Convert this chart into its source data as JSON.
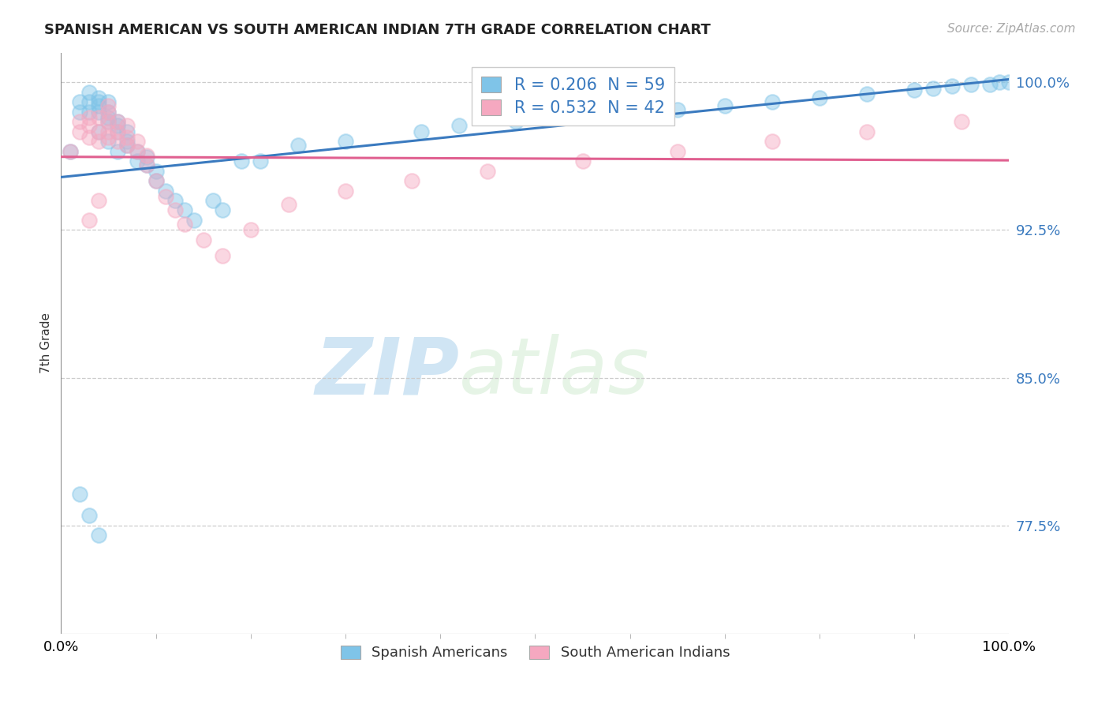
{
  "title": "SPANISH AMERICAN VS SOUTH AMERICAN INDIAN 7TH GRADE CORRELATION CHART",
  "source": "Source: ZipAtlas.com",
  "ylabel": "7th Grade",
  "xlim": [
    0.0,
    1.0
  ],
  "ylim": [
    0.72,
    1.015
  ],
  "ytick_labels": [
    "77.5%",
    "85.0%",
    "92.5%",
    "100.0%"
  ],
  "ytick_values": [
    0.775,
    0.85,
    0.925,
    1.0
  ],
  "legend_r1": "R = 0.206",
  "legend_n1": "N = 59",
  "legend_r2": "R = 0.532",
  "legend_n2": "N = 42",
  "blue_color": "#7fc4e8",
  "pink_color": "#f5a8c0",
  "blue_line_color": "#3a7abf",
  "pink_line_color": "#e06090",
  "watermark_zip": "ZIP",
  "watermark_atlas": "atlas",
  "blue_scatter_x": [
    0.01,
    0.02,
    0.02,
    0.03,
    0.03,
    0.03,
    0.04,
    0.04,
    0.04,
    0.04,
    0.04,
    0.05,
    0.05,
    0.05,
    0.05,
    0.05,
    0.06,
    0.06,
    0.06,
    0.06,
    0.07,
    0.07,
    0.07,
    0.08,
    0.08,
    0.09,
    0.09,
    0.1,
    0.1,
    0.11,
    0.12,
    0.13,
    0.14,
    0.16,
    0.17,
    0.19,
    0.21,
    0.25,
    0.3,
    0.38,
    0.42,
    0.48,
    0.55,
    0.6,
    0.65,
    0.7,
    0.75,
    0.8,
    0.85,
    0.9,
    0.92,
    0.94,
    0.96,
    0.98,
    0.99,
    0.02,
    0.03,
    0.04,
    1.0
  ],
  "blue_scatter_y": [
    0.965,
    0.985,
    0.99,
    0.985,
    0.99,
    0.995,
    0.985,
    0.988,
    0.99,
    0.992,
    0.975,
    0.98,
    0.982,
    0.985,
    0.99,
    0.97,
    0.975,
    0.978,
    0.98,
    0.965,
    0.968,
    0.97,
    0.975,
    0.96,
    0.965,
    0.958,
    0.962,
    0.95,
    0.955,
    0.945,
    0.94,
    0.935,
    0.93,
    0.94,
    0.935,
    0.96,
    0.96,
    0.968,
    0.97,
    0.975,
    0.978,
    0.98,
    0.982,
    0.984,
    0.986,
    0.988,
    0.99,
    0.992,
    0.994,
    0.996,
    0.997,
    0.998,
    0.999,
    0.999,
    1.0,
    0.791,
    0.78,
    0.77,
    1.0
  ],
  "pink_scatter_x": [
    0.01,
    0.02,
    0.02,
    0.03,
    0.03,
    0.03,
    0.04,
    0.04,
    0.04,
    0.05,
    0.05,
    0.05,
    0.05,
    0.06,
    0.06,
    0.06,
    0.07,
    0.07,
    0.07,
    0.08,
    0.08,
    0.09,
    0.09,
    0.1,
    0.11,
    0.12,
    0.13,
    0.15,
    0.17,
    0.2,
    0.24,
    0.3,
    0.37,
    0.45,
    0.55,
    0.65,
    0.75,
    0.85,
    0.95,
    0.03,
    0.04,
    0.05
  ],
  "pink_scatter_y": [
    0.965,
    0.975,
    0.98,
    0.972,
    0.978,
    0.982,
    0.97,
    0.975,
    0.982,
    0.972,
    0.975,
    0.98,
    0.985,
    0.97,
    0.975,
    0.98,
    0.968,
    0.972,
    0.978,
    0.965,
    0.97,
    0.958,
    0.963,
    0.95,
    0.942,
    0.935,
    0.928,
    0.92,
    0.912,
    0.925,
    0.938,
    0.945,
    0.95,
    0.955,
    0.96,
    0.965,
    0.97,
    0.975,
    0.98,
    0.93,
    0.94,
    0.988
  ]
}
